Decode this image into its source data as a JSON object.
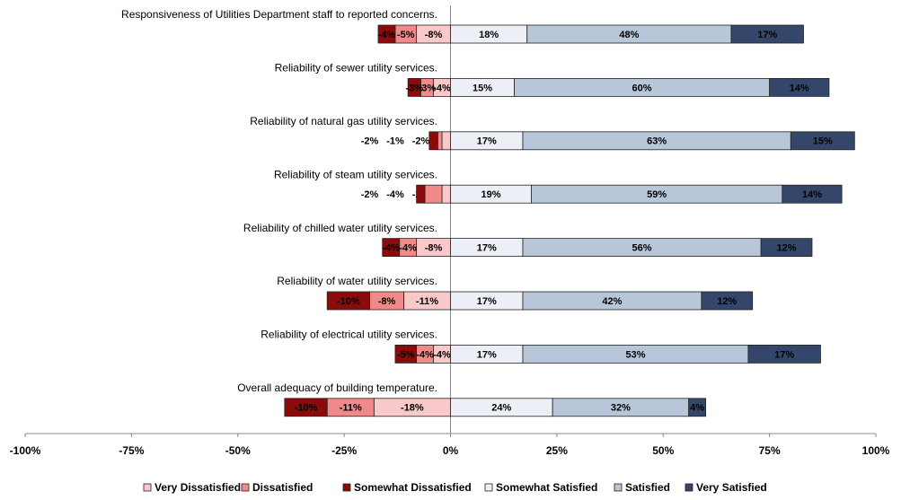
{
  "chart_data": {
    "type": "bar",
    "orientation": "horizontal",
    "stacked": true,
    "categories": [
      "Responsiveness of Utilities Department staff to reported concerns.",
      "Reliability of sewer utility services.",
      "Reliability of natural gas utility services.",
      "Reliability of steam utility services.",
      "Reliability of chilled water utility services.",
      "Reliability of water utility services.",
      "Reliability of electrical utility services.",
      "Overall adequacy of building temperature."
    ],
    "series": [
      {
        "name": "Very Dissatisfied",
        "color": "#f9c8c8",
        "values": [
          -8,
          -4,
          -2,
          -2,
          -8,
          -11,
          -4,
          -18
        ],
        "value_labels": [
          "-8%",
          "-4%",
          "-2%",
          "-2%",
          "-8%",
          "-11%",
          "-4%",
          "-18%"
        ]
      },
      {
        "name": "Dissatisfied",
        "color": "#f08a8a",
        "values": [
          -5,
          -3,
          -1,
          -4,
          -4,
          -8,
          -4,
          -11
        ],
        "value_labels": [
          "-5%",
          "-3%",
          "-1%",
          "-4%",
          "-4%",
          "-8%",
          "-4%",
          "-11%"
        ]
      },
      {
        "name": "Somewhat Dissatisfied",
        "color": "#8b0a0a",
        "values": [
          -4,
          -3,
          -2,
          -2,
          -4,
          -10,
          -5,
          -10
        ],
        "value_labels": [
          "-4%",
          "-3%",
          "-2%",
          "-2%",
          "-4%",
          "-10%",
          "-5%",
          "-10%"
        ]
      },
      {
        "name": "Somewhat Satisfied",
        "color": "#eceff5",
        "values": [
          18,
          15,
          17,
          19,
          17,
          17,
          17,
          24
        ],
        "value_labels": [
          "18%",
          "15%",
          "17%",
          "19%",
          "17%",
          "17%",
          "17%",
          "24%"
        ]
      },
      {
        "name": "Satisfied",
        "color": "#b7c6d9",
        "values": [
          48,
          60,
          63,
          59,
          56,
          42,
          53,
          32
        ],
        "value_labels": [
          "48%",
          "60%",
          "63%",
          "59%",
          "56%",
          "42%",
          "53%",
          "32%"
        ]
      },
      {
        "name": "Very Satisfied",
        "color": "#34476a",
        "values": [
          17,
          14,
          15,
          14,
          12,
          12,
          17,
          4
        ],
        "value_labels": [
          "17%",
          "14%",
          "15%",
          "14%",
          "12%",
          "12%",
          "17%",
          "4%"
        ]
      }
    ],
    "xlim": [
      -100,
      100
    ],
    "xticks": [
      {
        "value": -100,
        "label": "-100%"
      },
      {
        "value": -75,
        "label": "-75%"
      },
      {
        "value": -50,
        "label": "-50%"
      },
      {
        "value": -25,
        "label": "-25%"
      },
      {
        "value": 0,
        "label": "0%"
      },
      {
        "value": 25,
        "label": "25%"
      },
      {
        "value": 50,
        "label": "50%"
      },
      {
        "value": 75,
        "label": "75%"
      },
      {
        "value": 100,
        "label": "100%"
      }
    ],
    "legend": "bottom"
  }
}
